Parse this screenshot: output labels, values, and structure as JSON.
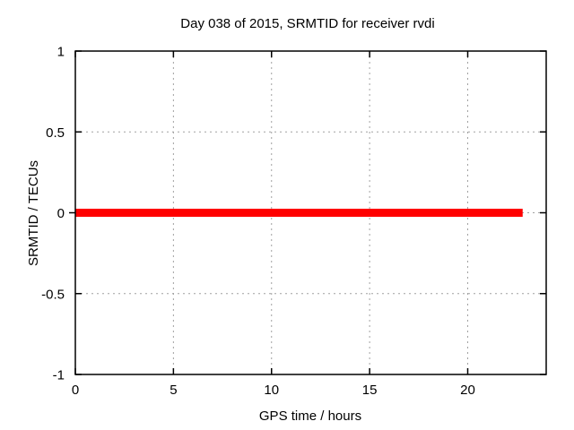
{
  "chart_data": {
    "type": "line",
    "title": "Day 038 of 2015, SRMTID for receiver rvdi",
    "xlabel": "GPS time / hours",
    "ylabel": "SRMTID / TECUs",
    "xlim": [
      0,
      24
    ],
    "ylim": [
      -1,
      1
    ],
    "xticks": [
      0,
      5,
      10,
      15,
      20
    ],
    "xtick_labels": [
      "0",
      "5",
      "10",
      "15",
      "20"
    ],
    "yticks": [
      -1,
      -0.5,
      0,
      0.5,
      1
    ],
    "ytick_labels": [
      "-1",
      "-0.5",
      "0",
      "0.5",
      "1"
    ],
    "grid": true,
    "grid_style": "dotted",
    "legend": "none",
    "series": [
      {
        "name": "SRMTID",
        "color": "#ff0000",
        "line_width": 9,
        "x": [
          0,
          22.8
        ],
        "y": [
          0,
          0
        ]
      }
    ]
  },
  "colors": {
    "background": "#ffffff",
    "border": "#000000",
    "grid": "#a0a0a0",
    "text": "#000000",
    "series": "#ff0000"
  }
}
